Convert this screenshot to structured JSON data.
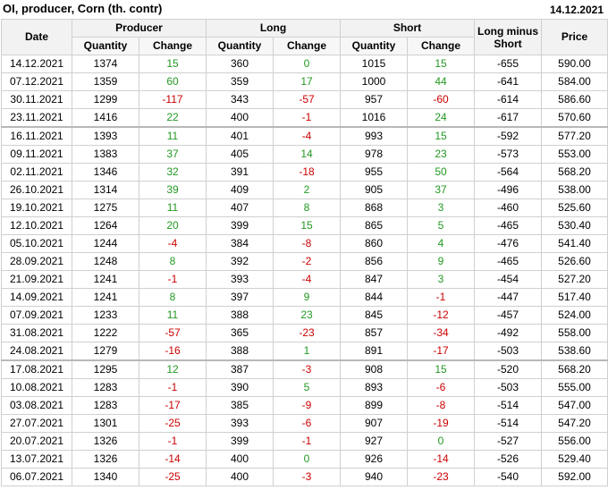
{
  "header": {
    "title": "OI, producer, Corn (th. contr)",
    "date": "14.12.2021"
  },
  "table": {
    "groups": [
      "Date",
      "Producer",
      "Long",
      "Short",
      "Long minus Short",
      "Price"
    ],
    "subheaders": [
      "Quantity",
      "Change",
      "Quantity",
      "Change",
      "Quantity",
      "Change"
    ],
    "rows": [
      [
        "14.12.2021",
        "1374",
        "15",
        "360",
        "0",
        "1015",
        "15",
        "-655",
        "590.00"
      ],
      [
        "07.12.2021",
        "1359",
        "60",
        "359",
        "17",
        "1000",
        "44",
        "-641",
        "584.00"
      ],
      [
        "30.11.2021",
        "1299",
        "-117",
        "343",
        "-57",
        "957",
        "-60",
        "-614",
        "586.60"
      ],
      [
        "23.11.2021",
        "1416",
        "22",
        "400",
        "-1",
        "1016",
        "24",
        "-617",
        "570.60"
      ],
      [
        "16.11.2021",
        "1393",
        "11",
        "401",
        "-4",
        "993",
        "15",
        "-592",
        "577.20"
      ],
      [
        "09.11.2021",
        "1383",
        "37",
        "405",
        "14",
        "978",
        "23",
        "-573",
        "553.00"
      ],
      [
        "02.11.2021",
        "1346",
        "32",
        "391",
        "-18",
        "955",
        "50",
        "-564",
        "568.20"
      ],
      [
        "26.10.2021",
        "1314",
        "39",
        "409",
        "2",
        "905",
        "37",
        "-496",
        "538.00"
      ],
      [
        "19.10.2021",
        "1275",
        "11",
        "407",
        "8",
        "868",
        "3",
        "-460",
        "525.60"
      ],
      [
        "12.10.2021",
        "1264",
        "20",
        "399",
        "15",
        "865",
        "5",
        "-465",
        "530.40"
      ],
      [
        "05.10.2021",
        "1244",
        "-4",
        "384",
        "-8",
        "860",
        "4",
        "-476",
        "541.40"
      ],
      [
        "28.09.2021",
        "1248",
        "8",
        "392",
        "-2",
        "856",
        "9",
        "-465",
        "526.60"
      ],
      [
        "21.09.2021",
        "1241",
        "-1",
        "393",
        "-4",
        "847",
        "3",
        "-454",
        "527.20"
      ],
      [
        "14.09.2021",
        "1241",
        "8",
        "397",
        "9",
        "844",
        "-1",
        "-447",
        "517.40"
      ],
      [
        "07.09.2021",
        "1233",
        "11",
        "388",
        "23",
        "845",
        "-12",
        "-457",
        "524.00"
      ],
      [
        "31.08.2021",
        "1222",
        "-57",
        "365",
        "-23",
        "857",
        "-34",
        "-492",
        "558.00"
      ],
      [
        "24.08.2021",
        "1279",
        "-16",
        "388",
        "1",
        "891",
        "-17",
        "-503",
        "538.60"
      ],
      [
        "17.08.2021",
        "1295",
        "12",
        "387",
        "-3",
        "908",
        "15",
        "-520",
        "568.20"
      ],
      [
        "10.08.2021",
        "1283",
        "-1",
        "390",
        "5",
        "893",
        "-6",
        "-503",
        "555.00"
      ],
      [
        "03.08.2021",
        "1283",
        "-17",
        "385",
        "-9",
        "899",
        "-8",
        "-514",
        "547.00"
      ],
      [
        "27.07.2021",
        "1301",
        "-25",
        "393",
        "-6",
        "907",
        "-19",
        "-514",
        "547.20"
      ],
      [
        "20.07.2021",
        "1326",
        "-1",
        "399",
        "-1",
        "927",
        "0",
        "-527",
        "556.00"
      ],
      [
        "13.07.2021",
        "1326",
        "-14",
        "400",
        "0",
        "926",
        "-14",
        "-526",
        "529.40"
      ],
      [
        "06.07.2021",
        "1340",
        "-25",
        "400",
        "-3",
        "940",
        "-23",
        "-540",
        "592.00"
      ]
    ]
  }
}
